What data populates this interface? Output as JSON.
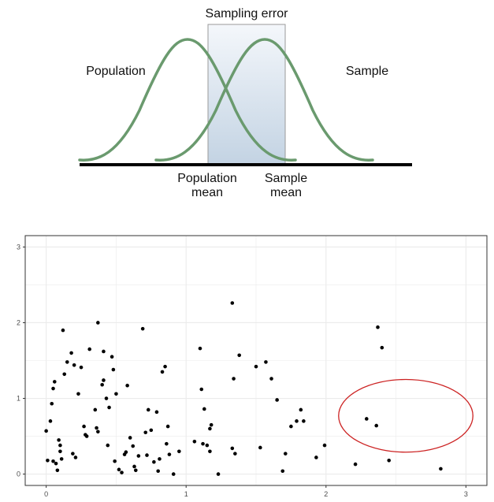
{
  "chart_data": [
    {
      "type": "diagram",
      "title": "Sampling error",
      "labels": {
        "population": "Population",
        "sample": "Sample",
        "population_mean": [
          "Population",
          "mean"
        ],
        "sample_mean": [
          "Sample",
          "mean"
        ]
      },
      "colors": {
        "curve": "#6a9a6e",
        "baseline": "#000000",
        "band_top": "#f4f7fb",
        "band_bottom": "#c3d3e3",
        "band_border": "#9a9a9a"
      }
    },
    {
      "type": "scatter",
      "xlim": [
        -0.15,
        3.15
      ],
      "ylim": [
        -0.15,
        3.15
      ],
      "xticks": [
        0,
        1,
        2,
        3
      ],
      "yticks": [
        0,
        1,
        2,
        3
      ],
      "xlabel": "",
      "ylabel": "",
      "grid": true,
      "colors": {
        "point": "#000000",
        "circle": "#cc2222",
        "grid": "#ebebeb",
        "axis": "#333333",
        "tick_label": "#4d4d4d"
      },
      "circle": {
        "cx": 2.57,
        "cy": 0.77,
        "r": 0.48
      },
      "points": [
        [
          0.0,
          0.57
        ],
        [
          0.01,
          0.18
        ],
        [
          0.03,
          0.7
        ],
        [
          0.04,
          0.93
        ],
        [
          0.05,
          1.13
        ],
        [
          0.06,
          1.22
        ],
        [
          0.05,
          0.17
        ],
        [
          0.07,
          0.14
        ],
        [
          0.08,
          0.05
        ],
        [
          0.09,
          0.45
        ],
        [
          0.1,
          0.38
        ],
        [
          0.1,
          0.3
        ],
        [
          0.11,
          0.2
        ],
        [
          0.12,
          1.9
        ],
        [
          0.13,
          1.32
        ],
        [
          0.15,
          1.48
        ],
        [
          0.18,
          1.6
        ],
        [
          0.2,
          1.44
        ],
        [
          0.19,
          0.27
        ],
        [
          0.21,
          0.22
        ],
        [
          0.23,
          1.06
        ],
        [
          0.25,
          1.41
        ],
        [
          0.27,
          0.63
        ],
        [
          0.28,
          0.52
        ],
        [
          0.29,
          0.5
        ],
        [
          0.31,
          1.65
        ],
        [
          0.35,
          0.85
        ],
        [
          0.36,
          0.61
        ],
        [
          0.37,
          0.56
        ],
        [
          0.37,
          2.0
        ],
        [
          0.4,
          1.18
        ],
        [
          0.41,
          1.62
        ],
        [
          0.41,
          1.24
        ],
        [
          0.43,
          1.0
        ],
        [
          0.44,
          0.38
        ],
        [
          0.45,
          0.88
        ],
        [
          0.47,
          1.55
        ],
        [
          0.48,
          1.38
        ],
        [
          0.49,
          0.17
        ],
        [
          0.5,
          1.06
        ],
        [
          0.52,
          0.06
        ],
        [
          0.54,
          0.02
        ],
        [
          0.56,
          0.26
        ],
        [
          0.57,
          0.29
        ],
        [
          0.58,
          1.17
        ],
        [
          0.6,
          0.48
        ],
        [
          0.62,
          0.37
        ],
        [
          0.63,
          0.1
        ],
        [
          0.64,
          0.05
        ],
        [
          0.66,
          0.24
        ],
        [
          0.69,
          1.92
        ],
        [
          0.71,
          0.55
        ],
        [
          0.72,
          0.25
        ],
        [
          0.73,
          0.85
        ],
        [
          0.75,
          0.58
        ],
        [
          0.77,
          0.16
        ],
        [
          0.79,
          0.82
        ],
        [
          0.8,
          0.04
        ],
        [
          0.81,
          0.2
        ],
        [
          0.83,
          1.35
        ],
        [
          0.85,
          1.42
        ],
        [
          0.86,
          0.4
        ],
        [
          0.87,
          0.63
        ],
        [
          0.88,
          0.26
        ],
        [
          0.91,
          0.0
        ],
        [
          0.95,
          0.3
        ],
        [
          1.06,
          0.43
        ],
        [
          1.1,
          1.66
        ],
        [
          1.11,
          1.12
        ],
        [
          1.12,
          0.4
        ],
        [
          1.13,
          0.86
        ],
        [
          1.15,
          0.38
        ],
        [
          1.17,
          0.6
        ],
        [
          1.17,
          0.3
        ],
        [
          1.18,
          0.65
        ],
        [
          1.23,
          0.0
        ],
        [
          1.33,
          2.26
        ],
        [
          1.33,
          0.34
        ],
        [
          1.34,
          1.26
        ],
        [
          1.35,
          0.27
        ],
        [
          1.38,
          1.57
        ],
        [
          1.5,
          1.42
        ],
        [
          1.53,
          0.35
        ],
        [
          1.57,
          1.48
        ],
        [
          1.61,
          1.26
        ],
        [
          1.65,
          0.98
        ],
        [
          1.69,
          0.04
        ],
        [
          1.71,
          0.27
        ],
        [
          1.75,
          0.63
        ],
        [
          1.79,
          0.7
        ],
        [
          1.82,
          0.85
        ],
        [
          1.84,
          0.7
        ],
        [
          1.93,
          0.22
        ],
        [
          1.99,
          0.38
        ],
        [
          2.21,
          0.13
        ],
        [
          2.29,
          0.73
        ],
        [
          2.37,
          1.94
        ],
        [
          2.4,
          1.67
        ],
        [
          2.36,
          0.64
        ],
        [
          2.45,
          0.18
        ],
        [
          2.82,
          0.07
        ]
      ]
    }
  ]
}
